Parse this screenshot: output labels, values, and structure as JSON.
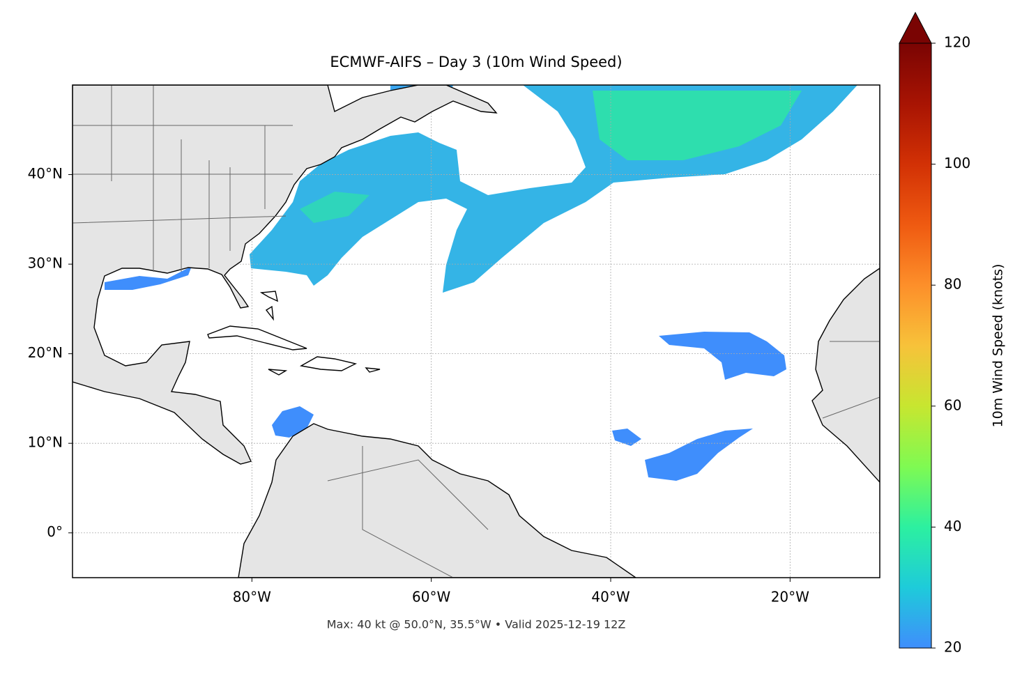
{
  "chart_data": {
    "type": "map",
    "title": "ECMWF-AIFS – Day 3 (10m Wind Speed)",
    "annotation": "Max: 40 kt @ 50.0°N, 35.5°W • Valid 2025-12-19 12Z",
    "xlim": [
      -100,
      -10
    ],
    "ylim": [
      -5,
      50
    ],
    "xticks": [
      {
        "value": -80,
        "label": "80°W"
      },
      {
        "value": -60,
        "label": "60°W"
      },
      {
        "value": -40,
        "label": "40°W"
      },
      {
        "value": -20,
        "label": "20°W"
      }
    ],
    "yticks": [
      {
        "value": 0,
        "label": "0°"
      },
      {
        "value": 10,
        "label": "10°N"
      },
      {
        "value": 20,
        "label": "20°N"
      },
      {
        "value": 30,
        "label": "30°N"
      },
      {
        "value": 40,
        "label": "40°N"
      }
    ],
    "grid": true,
    "colorbar": {
      "label": "10m Wind Speed (knots)",
      "lim": [
        20,
        120
      ],
      "ticks": [
        20,
        40,
        60,
        80,
        100,
        120
      ],
      "colors": [
        "#3f8efc",
        "#1ecbda",
        "#2cf0a0",
        "#7ffa52",
        "#c7e630",
        "#f7c23a",
        "#fd8f2a",
        "#ef5a11",
        "#d23105",
        "#a81403",
        "#7a0403"
      ],
      "extend": "max"
    }
  }
}
